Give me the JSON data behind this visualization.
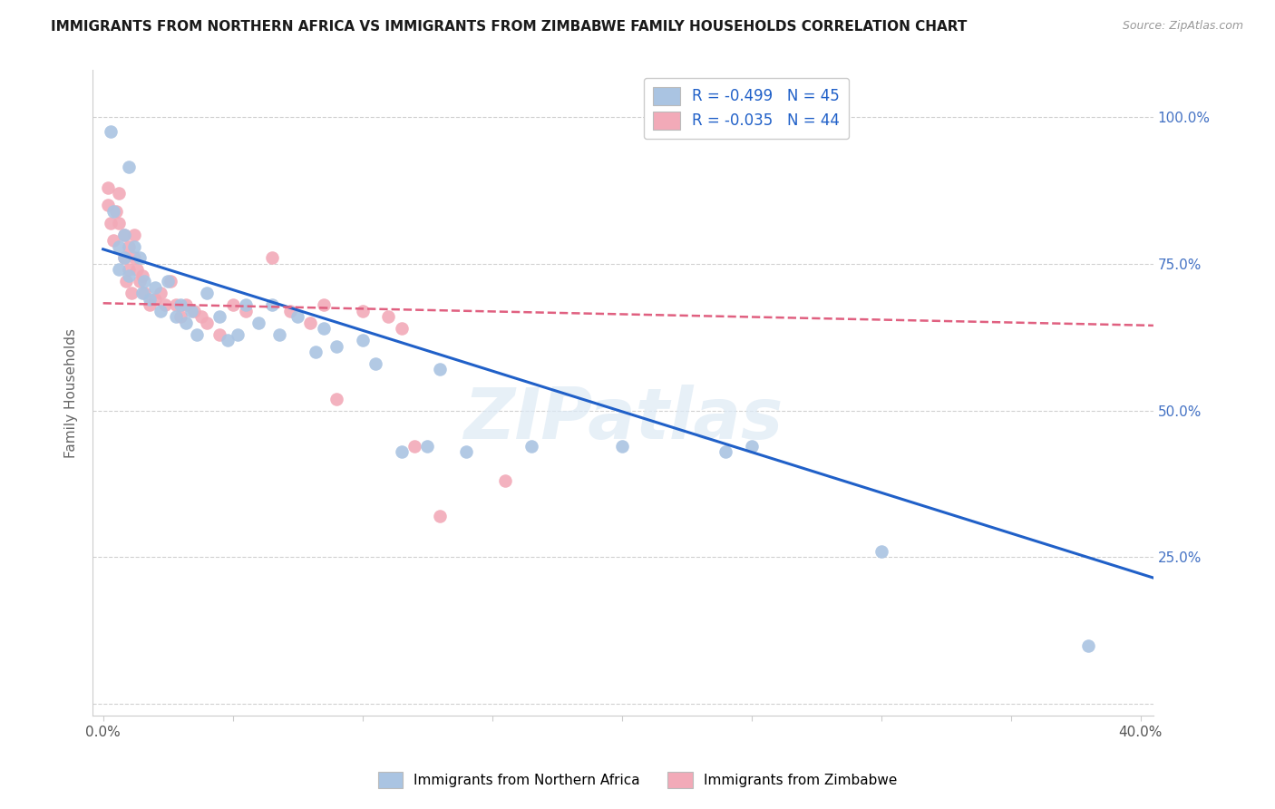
{
  "title": "IMMIGRANTS FROM NORTHERN AFRICA VS IMMIGRANTS FROM ZIMBABWE FAMILY HOUSEHOLDS CORRELATION CHART",
  "source": "Source: ZipAtlas.com",
  "ylabel": "Family Households",
  "x_ticks": [
    0.0,
    0.05,
    0.1,
    0.15,
    0.2,
    0.25,
    0.3,
    0.35,
    0.4
  ],
  "x_tick_labels": [
    "0.0%",
    "",
    "",
    "",
    "",
    "",
    "",
    "",
    "40.0%"
  ],
  "y_ticks": [
    0.0,
    0.25,
    0.5,
    0.75,
    1.0
  ],
  "y_tick_labels_right": [
    "",
    "25.0%",
    "50.0%",
    "75.0%",
    "100.0%"
  ],
  "xlim": [
    -0.004,
    0.405
  ],
  "ylim": [
    -0.02,
    1.08
  ],
  "blue_color": "#aac4e2",
  "pink_color": "#f2aab8",
  "blue_line_color": "#2060c8",
  "pink_line_color": "#e06080",
  "blue_scatter_x": [
    0.003,
    0.01,
    0.004,
    0.006,
    0.006,
    0.008,
    0.008,
    0.01,
    0.012,
    0.014,
    0.015,
    0.016,
    0.018,
    0.02,
    0.022,
    0.025,
    0.028,
    0.03,
    0.032,
    0.034,
    0.036,
    0.04,
    0.045,
    0.048,
    0.052,
    0.055,
    0.06,
    0.065,
    0.068,
    0.075,
    0.082,
    0.085,
    0.09,
    0.1,
    0.105,
    0.115,
    0.125,
    0.13,
    0.14,
    0.165,
    0.2,
    0.24,
    0.25,
    0.3,
    0.38
  ],
  "blue_scatter_y": [
    0.975,
    0.915,
    0.84,
    0.78,
    0.74,
    0.8,
    0.76,
    0.73,
    0.78,
    0.76,
    0.7,
    0.72,
    0.69,
    0.71,
    0.67,
    0.72,
    0.66,
    0.68,
    0.65,
    0.67,
    0.63,
    0.7,
    0.66,
    0.62,
    0.63,
    0.68,
    0.65,
    0.68,
    0.63,
    0.66,
    0.6,
    0.64,
    0.61,
    0.62,
    0.58,
    0.43,
    0.44,
    0.57,
    0.43,
    0.44,
    0.44,
    0.43,
    0.44,
    0.26,
    0.1
  ],
  "pink_scatter_x": [
    0.002,
    0.002,
    0.003,
    0.004,
    0.005,
    0.006,
    0.006,
    0.008,
    0.008,
    0.009,
    0.01,
    0.01,
    0.011,
    0.012,
    0.012,
    0.013,
    0.014,
    0.015,
    0.016,
    0.018,
    0.02,
    0.022,
    0.024,
    0.026,
    0.028,
    0.03,
    0.032,
    0.035,
    0.038,
    0.04,
    0.045,
    0.05,
    0.055,
    0.065,
    0.072,
    0.08,
    0.085,
    0.09,
    0.1,
    0.11,
    0.115,
    0.12,
    0.13,
    0.155
  ],
  "pink_scatter_y": [
    0.88,
    0.85,
    0.82,
    0.79,
    0.84,
    0.87,
    0.82,
    0.8,
    0.76,
    0.72,
    0.78,
    0.74,
    0.7,
    0.8,
    0.76,
    0.74,
    0.72,
    0.73,
    0.7,
    0.68,
    0.69,
    0.7,
    0.68,
    0.72,
    0.68,
    0.66,
    0.68,
    0.67,
    0.66,
    0.65,
    0.63,
    0.68,
    0.67,
    0.76,
    0.67,
    0.65,
    0.68,
    0.52,
    0.67,
    0.66,
    0.64,
    0.44,
    0.32,
    0.38
  ],
  "blue_line_x0": 0.0,
  "blue_line_y0": 0.775,
  "blue_line_x1": 0.405,
  "blue_line_y1": 0.215,
  "pink_line_x0": 0.0,
  "pink_line_y0": 0.683,
  "pink_line_x1": 0.405,
  "pink_line_y1": 0.645,
  "watermark_text": "ZIPatlas",
  "background_color": "#ffffff",
  "grid_color": "#cccccc",
  "legend_blue_label": "R = -0.499   N = 45",
  "legend_pink_label": "R = -0.035   N = 44",
  "bottom_legend_blue": "Immigrants from Northern Africa",
  "bottom_legend_pink": "Immigrants from Zimbabwe"
}
